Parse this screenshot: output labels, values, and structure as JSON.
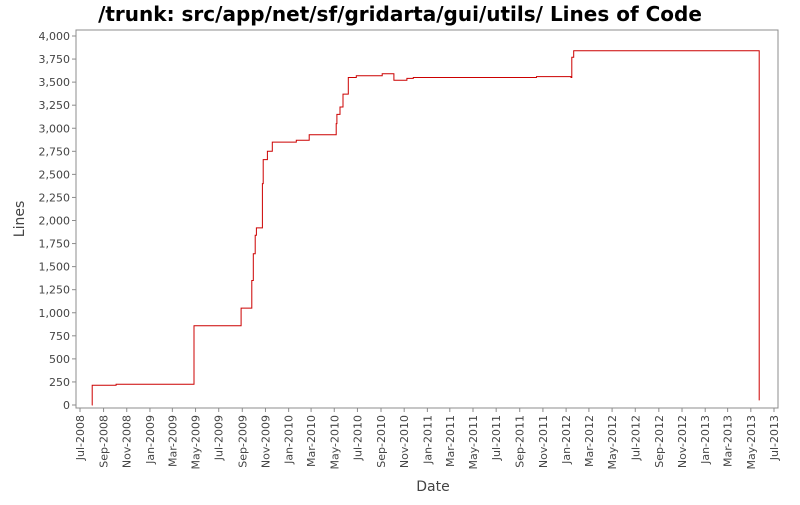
{
  "chart_data": {
    "type": "line",
    "title": "/trunk: src/app/net/sf/gridarta/gui/utils/ Lines of Code",
    "xlabel": "Date",
    "ylabel": "Lines",
    "xlim": [
      "2008-07-01",
      "2013-07-01"
    ],
    "ylim": [
      0,
      4000
    ],
    "x_ticks": [
      "Jul-2008",
      "Sep-2008",
      "Nov-2008",
      "Jan-2009",
      "Mar-2009",
      "May-2009",
      "Jul-2009",
      "Sep-2009",
      "Nov-2009",
      "Jan-2010",
      "Mar-2010",
      "May-2010",
      "Jul-2010",
      "Sep-2010",
      "Nov-2010",
      "Jan-2011",
      "Mar-2011",
      "May-2011",
      "Jul-2011",
      "Sep-2011",
      "Nov-2011",
      "Jan-2012",
      "Mar-2012",
      "May-2012",
      "Jul-2012",
      "Sep-2012",
      "Nov-2012",
      "Jan-2013",
      "Mar-2013",
      "May-2013",
      "Jul-2013"
    ],
    "y_ticks": [
      "0",
      "250",
      "500",
      "750",
      "1,000",
      "1,250",
      "1,500",
      "1,750",
      "2,000",
      "2,250",
      "2,500",
      "2,750",
      "3,000",
      "3,250",
      "3,500",
      "3,750",
      "4,000"
    ],
    "grid": false,
    "legend": "none",
    "step": true,
    "series": [
      {
        "color": "#cc0000",
        "points": [
          [
            "2008-08-01",
            0
          ],
          [
            "2008-08-02",
            215
          ],
          [
            "2008-10-03",
            215
          ],
          [
            "2008-10-04",
            225
          ],
          [
            "2009-04-26",
            225
          ],
          [
            "2009-04-27",
            860
          ],
          [
            "2009-08-28",
            860
          ],
          [
            "2009-08-29",
            1050
          ],
          [
            "2009-09-25",
            1050
          ],
          [
            "2009-09-26",
            1350
          ],
          [
            "2009-09-30",
            1640
          ],
          [
            "2009-10-05",
            1840
          ],
          [
            "2009-10-08",
            1920
          ],
          [
            "2009-10-24",
            2400
          ],
          [
            "2009-10-26",
            2660
          ],
          [
            "2009-11-06",
            2750
          ],
          [
            "2009-11-19",
            2850
          ],
          [
            "2010-01-20",
            2850
          ],
          [
            "2010-01-21",
            2870
          ],
          [
            "2010-02-24",
            2930
          ],
          [
            "2010-05-05",
            2930
          ],
          [
            "2010-05-06",
            3050
          ],
          [
            "2010-05-08",
            3150
          ],
          [
            "2010-05-16",
            3230
          ],
          [
            "2010-05-24",
            3370
          ],
          [
            "2010-06-07",
            3550
          ],
          [
            "2010-06-28",
            3570
          ],
          [
            "2010-09-04",
            3590
          ],
          [
            "2010-10-05",
            3520
          ],
          [
            "2010-11-08",
            3540
          ],
          [
            "2010-11-25",
            3550
          ],
          [
            "2011-10-15",
            3560
          ],
          [
            "2012-01-14",
            3550
          ],
          [
            "2012-01-16",
            3770
          ],
          [
            "2012-01-21",
            3840
          ],
          [
            "2013-05-22",
            3840
          ],
          [
            "2013-05-23",
            50
          ]
        ]
      }
    ]
  }
}
